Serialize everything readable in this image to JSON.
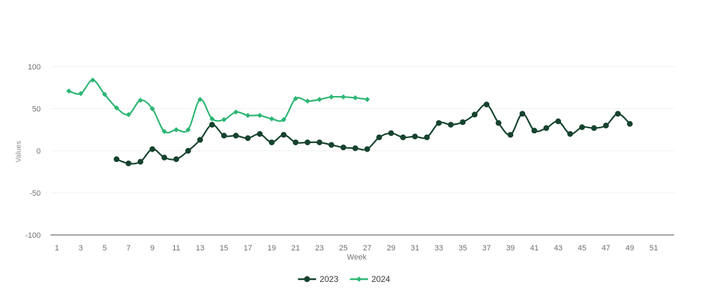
{
  "chart_data": {
    "type": "line",
    "title": "",
    "xlabel": "Week",
    "ylabel": "Values",
    "xlim": [
      1,
      52
    ],
    "ylim": [
      -100,
      100
    ],
    "x_ticks": [
      1,
      3,
      5,
      7,
      9,
      11,
      13,
      15,
      17,
      19,
      21,
      23,
      25,
      27,
      29,
      31,
      33,
      35,
      37,
      39,
      41,
      43,
      45,
      47,
      49,
      51
    ],
    "y_ticks": [
      100,
      50,
      0,
      -50,
      -100
    ],
    "grid": true,
    "legend_position": "bottom",
    "series": [
      {
        "name": "2023",
        "color": "#16432e",
        "marker": "circle",
        "x": [
          6,
          7,
          8,
          9,
          10,
          11,
          12,
          13,
          14,
          15,
          16,
          17,
          18,
          19,
          20,
          21,
          22,
          23,
          24,
          25,
          26,
          27,
          28,
          29,
          30,
          31,
          32,
          33,
          34,
          35,
          36,
          37,
          38,
          39,
          40,
          41,
          42,
          43,
          44,
          45,
          46,
          47,
          48,
          49
        ],
        "values": [
          -10,
          -15,
          -13,
          2,
          -8,
          -10,
          0,
          13,
          31,
          18,
          18,
          15,
          20,
          10,
          19,
          10,
          10,
          10,
          7,
          4,
          3,
          2,
          16,
          21,
          16,
          17,
          16,
          33,
          31,
          34,
          43,
          55,
          33,
          19,
          44,
          24,
          27,
          35,
          20,
          28,
          27,
          30,
          44,
          32
        ]
      },
      {
        "name": "2024",
        "color": "#2cb673",
        "marker": "diamond",
        "x": [
          2,
          3,
          4,
          5,
          6,
          7,
          8,
          9,
          10,
          11,
          12,
          13,
          14,
          15,
          16,
          17,
          18,
          19,
          20,
          21,
          22,
          23,
          24,
          25,
          26,
          27
        ],
        "values": [
          71,
          68,
          84,
          67,
          51,
          43,
          60,
          50,
          23,
          25,
          25,
          61,
          38,
          37,
          46,
          42,
          42,
          38,
          37,
          62,
          59,
          61,
          64,
          64,
          63,
          61
        ]
      }
    ],
    "style_colors": {
      "grid": "#efefef",
      "axis_line": "#a3a3a3",
      "tick_text": "#6e6e6e",
      "axis_title_text": "#7c7c7c",
      "legend_text": "#3a3a3a"
    }
  }
}
